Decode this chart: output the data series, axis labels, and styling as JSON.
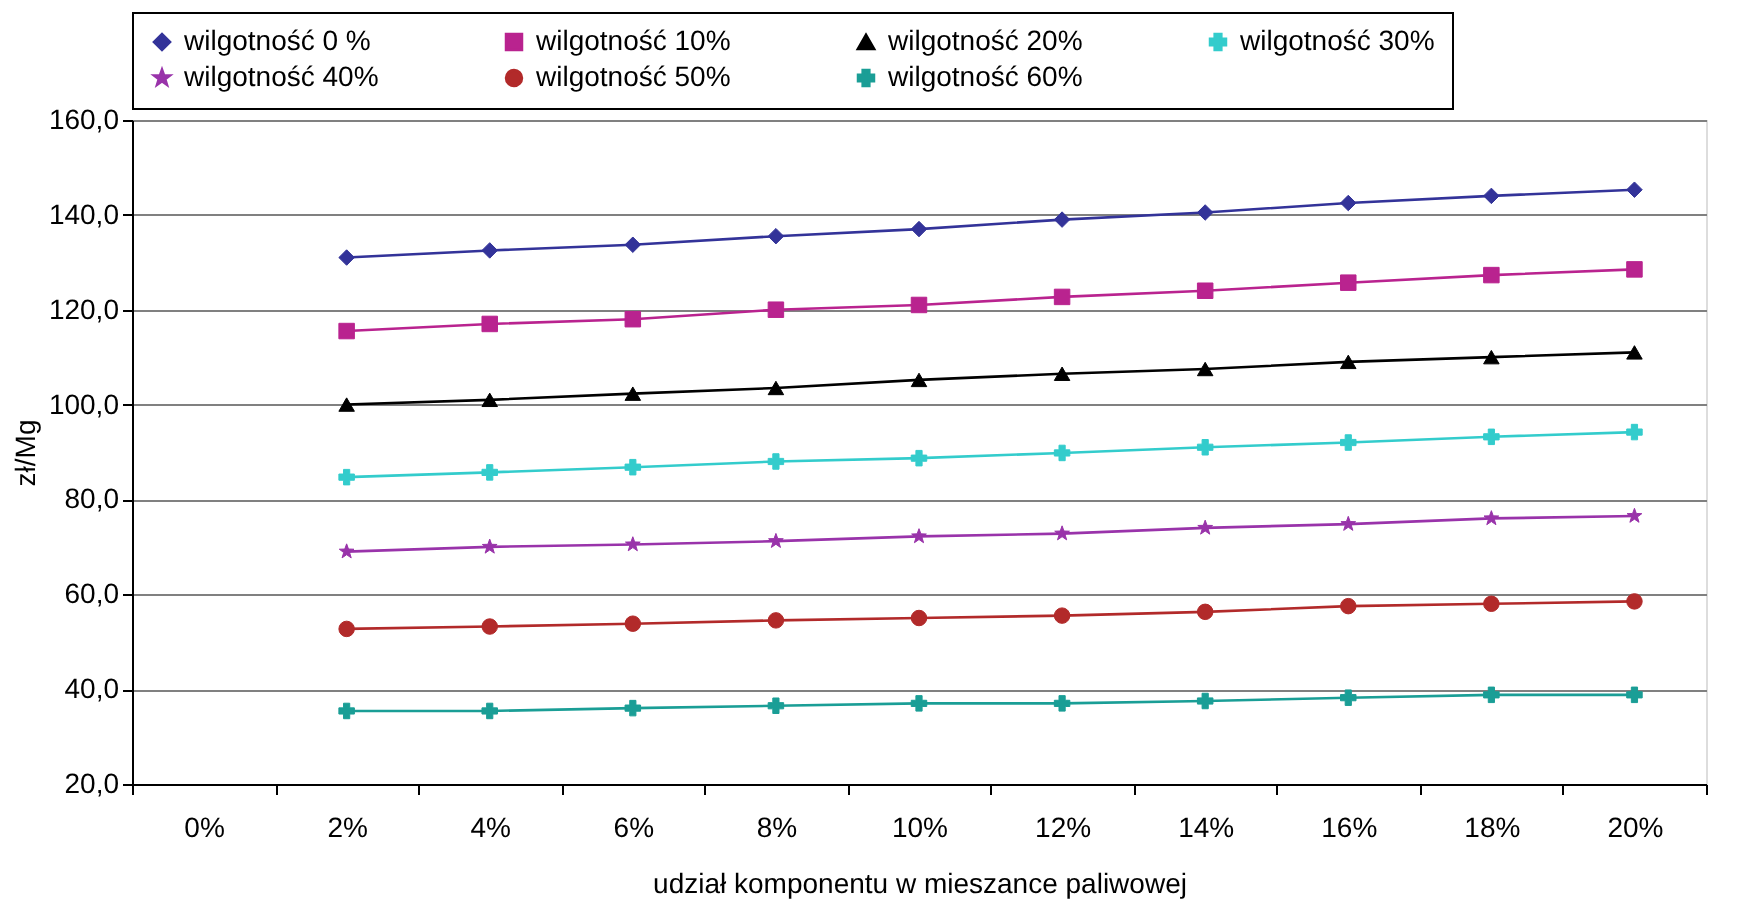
{
  "chart_data": {
    "type": "line",
    "xlabel": "udział komponentu w mieszance paliwowej",
    "ylabel": "zł/Mg",
    "categories": [
      "0%",
      "2%",
      "4%",
      "6%",
      "8%",
      "10%",
      "12%",
      "14%",
      "16%",
      "18%",
      "20%"
    ],
    "series": [
      {
        "name": "wilgotność 0 %",
        "color": "#333399",
        "marker": "diamond",
        "values": [
          null,
          131,
          132.5,
          133.7,
          135.5,
          137,
          139,
          140.5,
          142.5,
          144,
          145.3
        ]
      },
      {
        "name": "wilgotność 10%",
        "color": "#b9238f",
        "marker": "square",
        "values": [
          null,
          115.5,
          117,
          118,
          120,
          121,
          122.7,
          124,
          125.7,
          127.3,
          128.5
        ]
      },
      {
        "name": "wilgotność 20%",
        "color": "#000000",
        "marker": "triangle",
        "values": [
          null,
          100,
          101,
          102.3,
          103.5,
          105.2,
          106.5,
          107.5,
          109,
          110,
          111
        ]
      },
      {
        "name": "wilgotność 30%",
        "color": "#33cccc",
        "marker": "cross",
        "values": [
          null,
          84.7,
          85.7,
          86.8,
          88,
          88.7,
          89.8,
          91,
          92,
          93.2,
          94.2
        ]
      },
      {
        "name": "wilgotność 40%",
        "color": "#9933aa",
        "marker": "star",
        "values": [
          null,
          69,
          70,
          70.5,
          71.2,
          72.2,
          72.8,
          74,
          74.8,
          76,
          76.5
        ]
      },
      {
        "name": "wilgotność 50%",
        "color": "#b22a2a",
        "marker": "circle",
        "values": [
          null,
          52.7,
          53.2,
          53.8,
          54.5,
          55,
          55.5,
          56.3,
          57.5,
          58,
          58.5
        ]
      },
      {
        "name": "wilgotność 60%",
        "color": "#1a9e96",
        "marker": "cross",
        "values": [
          null,
          35.4,
          35.4,
          36,
          36.5,
          37,
          37,
          37.5,
          38.2,
          38.8,
          38.8
        ]
      }
    ],
    "ylim": [
      20,
      160
    ],
    "yticks": [
      {
        "value": 20,
        "label": "20,0"
      },
      {
        "value": 40,
        "label": "40,0"
      },
      {
        "value": 60,
        "label": "60,0"
      },
      {
        "value": 80,
        "label": "80,0"
      },
      {
        "value": 100,
        "label": "100,0"
      },
      {
        "value": 120,
        "label": "120,0"
      },
      {
        "value": 140,
        "label": "140,0"
      },
      {
        "value": 160,
        "label": "160,0"
      }
    ],
    "grid": "y",
    "legend": "top",
    "line_style": "solid"
  }
}
